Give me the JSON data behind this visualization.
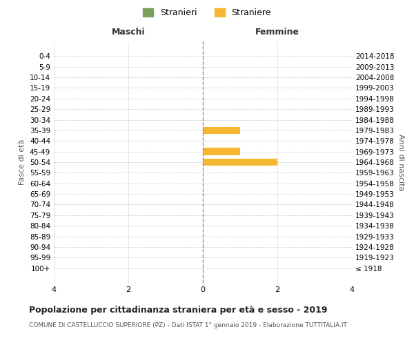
{
  "age_groups": [
    "100+",
    "95-99",
    "90-94",
    "85-89",
    "80-84",
    "75-79",
    "70-74",
    "65-69",
    "60-64",
    "55-59",
    "50-54",
    "45-49",
    "40-44",
    "35-39",
    "30-34",
    "25-29",
    "20-24",
    "15-19",
    "10-14",
    "5-9",
    "0-4"
  ],
  "birth_years": [
    "≤ 1918",
    "1919-1923",
    "1924-1928",
    "1929-1933",
    "1934-1938",
    "1939-1943",
    "1944-1948",
    "1949-1953",
    "1954-1958",
    "1959-1963",
    "1964-1968",
    "1969-1973",
    "1974-1978",
    "1979-1983",
    "1984-1988",
    "1989-1993",
    "1994-1998",
    "1999-2003",
    "2004-2008",
    "2009-2013",
    "2014-2018"
  ],
  "males": [
    0,
    0,
    0,
    0,
    0,
    0,
    0,
    0,
    0,
    0,
    0,
    0,
    0,
    0,
    0,
    0,
    0,
    0,
    0,
    0,
    0
  ],
  "females": [
    0,
    0,
    0,
    0,
    0,
    0,
    0,
    0,
    0,
    0,
    2,
    1,
    0,
    1,
    0,
    0,
    0,
    0,
    0,
    0,
    0
  ],
  "male_color": "#7a9f58",
  "female_color": "#f5b731",
  "male_label": "Stranieri",
  "female_label": "Straniere",
  "xlim": 4,
  "xlabel_left": "Maschi",
  "xlabel_right": "Femmine",
  "ylabel_left": "Fasce di età",
  "ylabel_right": "Anni di nascita",
  "title": "Popolazione per cittadinanza straniera per età e sesso - 2019",
  "subtitle": "COMUNE DI CASTELLUCCIO SUPERIORE (PZ) - Dati ISTAT 1° gennaio 2019 - Elaborazione TUTTITALIA.IT",
  "background_color": "#ffffff",
  "grid_color": "#cccccc"
}
